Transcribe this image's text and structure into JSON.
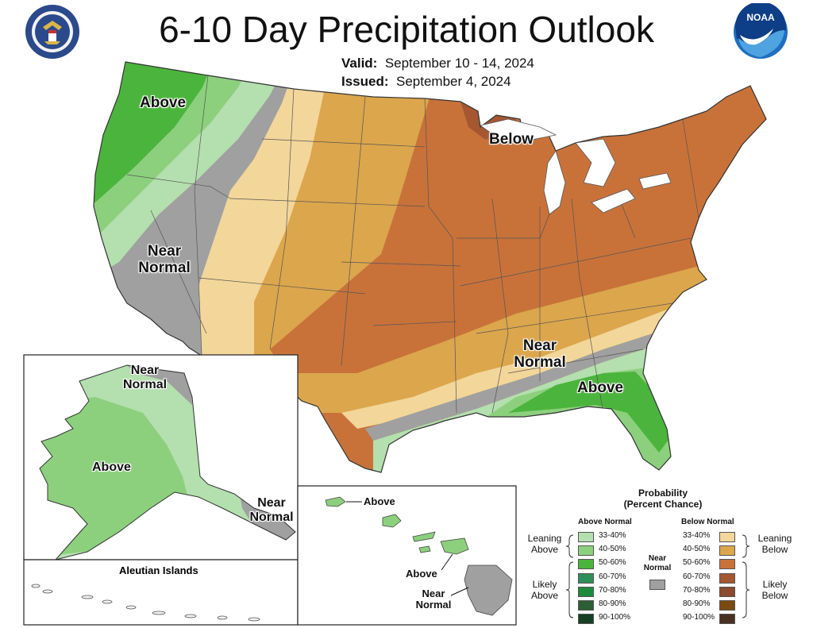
{
  "header": {
    "title": "6-10 Day Precipitation Outlook",
    "valid_label": "Valid:",
    "valid_value": "September 10 - 14, 2024",
    "issued_label": "Issued:",
    "issued_value": "September 4, 2024",
    "logo_left_icon": "department-of-commerce-seal-icon",
    "logo_right_icon": "noaa-logo-icon",
    "noaa_text": "NOAA"
  },
  "map_labels": {
    "west_above": "Above",
    "midwest_below": "Below",
    "west_near": "Near",
    "west_normal": "Normal",
    "se_near": "Near",
    "se_normal": "Normal",
    "se_above": "Above",
    "ak_near_top_1": "Near",
    "ak_near_top_2": "Normal",
    "ak_above": "Above",
    "ak_near_se_1": "Near",
    "ak_near_se_2": "Normal",
    "aleutian_title": "Aleutian Islands",
    "hi_above_1": "Above",
    "hi_above_2": "Above",
    "hi_near_1": "Near",
    "hi_near_2": "Normal"
  },
  "categories": {
    "above_leaning": "#b4dfae",
    "above_40_50": "#8cd07d",
    "above_50_60": "#4bb43c",
    "near_normal": "#a0a0a0",
    "below_leaning": "#f3d699",
    "below_40_50": "#dca64c",
    "below_50_60": "#c8723a",
    "below_60_70": "#a55732"
  },
  "legend": {
    "title_1": "Probability",
    "title_2": "(Percent Chance)",
    "above_header": "Above Normal",
    "below_header": "Below Normal",
    "leaning_above": "Leaning Above",
    "likely_above": "Likely Above",
    "leaning_below": "Leaning Below",
    "likely_below": "Likely Below",
    "near_normal_1": "Near",
    "near_normal_2": "Normal",
    "ranges": [
      "33-40%",
      "40-50%",
      "50-60%",
      "60-70%",
      "70-80%",
      "80-90%",
      "90-100%"
    ],
    "above_colors": [
      "#b4dfae",
      "#8cd07d",
      "#4bb43c",
      "#2f8f58",
      "#1e8a3c",
      "#2d5e34",
      "#173f24"
    ],
    "below_colors": [
      "#f3d699",
      "#dca64c",
      "#c8723a",
      "#a55732",
      "#8c4a2e",
      "#7a4a12",
      "#4a3020"
    ],
    "near_color": "#a0a0a0"
  }
}
